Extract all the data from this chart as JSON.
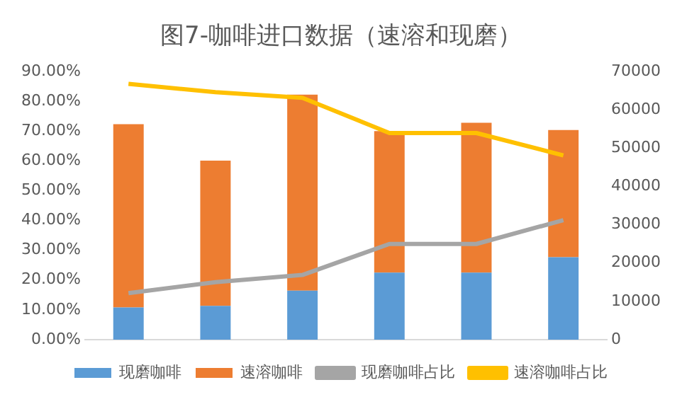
{
  "chart_data": {
    "type": "bar",
    "title": "图7-咖啡进口数据（速溶和现磨）",
    "categories": [
      null,
      null,
      null,
      null,
      null,
      null
    ],
    "stacked": true,
    "legend": "bottom",
    "grid": false,
    "marker": "none",
    "tick_labels": "y",
    "series": [
      {
        "name": "现磨咖啡",
        "axis": "y2",
        "color": "#5b9bd5",
        "values": [
          8400,
          8800,
          12800,
          17500,
          17500,
          21500
        ]
      },
      {
        "name": "速溶咖啡",
        "axis": "y2",
        "color": "#ed7d31",
        "values": [
          47800,
          37900,
          51100,
          36900,
          39100,
          33200
        ]
      },
      {
        "name": "现磨咖啡占比",
        "type": "line",
        "color": "#a5a5a5",
        "values": [
          15.6,
          19.3,
          21.7,
          32.1,
          32.1,
          40.1
        ]
      },
      {
        "name": "速溶咖啡占比",
        "type": "line",
        "color": "#ffc000",
        "values": [
          85.8,
          83.0,
          81.1,
          69.3,
          69.3,
          61.8
        ]
      }
    ],
    "ylim": [
      0,
      90
    ],
    "yticks": [
      {
        "value": 0,
        "label": "0.00%"
      },
      {
        "value": 10,
        "label": "10.00%"
      },
      {
        "value": 20,
        "label": "20.00%"
      },
      {
        "value": 30,
        "label": "30.00%"
      },
      {
        "value": 40,
        "label": "40.00%"
      },
      {
        "value": 50,
        "label": "50.00%"
      },
      {
        "value": 60,
        "label": "60.00%"
      },
      {
        "value": 70,
        "label": "70.00%"
      },
      {
        "value": 80,
        "label": "80.00%"
      },
      {
        "value": 90,
        "label": "90.00%"
      }
    ],
    "y2lim": [
      0,
      70000
    ],
    "y2ticks": [
      0,
      10000,
      20000,
      30000,
      40000,
      50000,
      60000,
      70000
    ]
  }
}
